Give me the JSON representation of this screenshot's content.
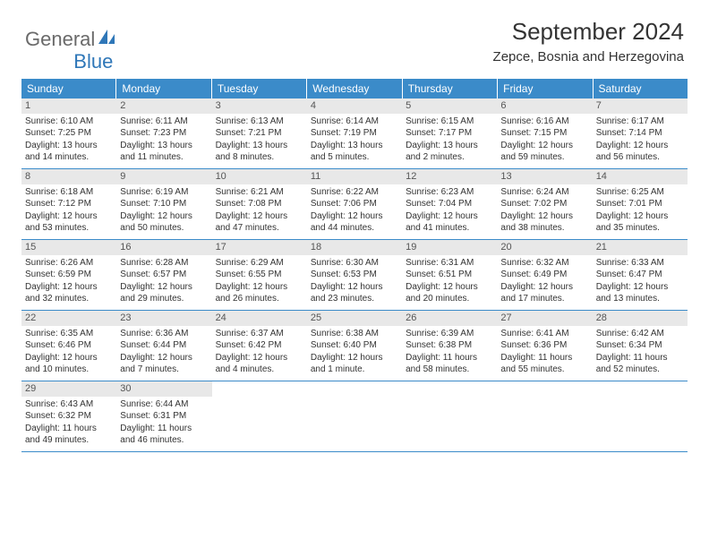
{
  "brand": {
    "part1": "General",
    "part2": "Blue",
    "part1_color": "#6a6a6a",
    "part2_color": "#2f77b8"
  },
  "title": "September 2024",
  "location": "Zepce, Bosnia and Herzegovina",
  "styling": {
    "header_bg": "#3b8bc9",
    "header_text": "#ffffff",
    "daynum_band_bg": "#e8e8e8",
    "daynum_text": "#555555",
    "body_text": "#333333",
    "row_border": "#3b8bc9",
    "weekday_fontsize": 12,
    "daynum_fontsize": 11,
    "info_fontsize": 10,
    "title_fontsize": 26,
    "location_fontsize": 15
  },
  "weekdays": [
    "Sunday",
    "Monday",
    "Tuesday",
    "Wednesday",
    "Thursday",
    "Friday",
    "Saturday"
  ],
  "weeks": [
    [
      {
        "n": "1",
        "sr": "Sunrise: 6:10 AM",
        "ss": "Sunset: 7:25 PM",
        "dl": "Daylight: 13 hours and 14 minutes."
      },
      {
        "n": "2",
        "sr": "Sunrise: 6:11 AM",
        "ss": "Sunset: 7:23 PM",
        "dl": "Daylight: 13 hours and 11 minutes."
      },
      {
        "n": "3",
        "sr": "Sunrise: 6:13 AM",
        "ss": "Sunset: 7:21 PM",
        "dl": "Daylight: 13 hours and 8 minutes."
      },
      {
        "n": "4",
        "sr": "Sunrise: 6:14 AM",
        "ss": "Sunset: 7:19 PM",
        "dl": "Daylight: 13 hours and 5 minutes."
      },
      {
        "n": "5",
        "sr": "Sunrise: 6:15 AM",
        "ss": "Sunset: 7:17 PM",
        "dl": "Daylight: 13 hours and 2 minutes."
      },
      {
        "n": "6",
        "sr": "Sunrise: 6:16 AM",
        "ss": "Sunset: 7:15 PM",
        "dl": "Daylight: 12 hours and 59 minutes."
      },
      {
        "n": "7",
        "sr": "Sunrise: 6:17 AM",
        "ss": "Sunset: 7:14 PM",
        "dl": "Daylight: 12 hours and 56 minutes."
      }
    ],
    [
      {
        "n": "8",
        "sr": "Sunrise: 6:18 AM",
        "ss": "Sunset: 7:12 PM",
        "dl": "Daylight: 12 hours and 53 minutes."
      },
      {
        "n": "9",
        "sr": "Sunrise: 6:19 AM",
        "ss": "Sunset: 7:10 PM",
        "dl": "Daylight: 12 hours and 50 minutes."
      },
      {
        "n": "10",
        "sr": "Sunrise: 6:21 AM",
        "ss": "Sunset: 7:08 PM",
        "dl": "Daylight: 12 hours and 47 minutes."
      },
      {
        "n": "11",
        "sr": "Sunrise: 6:22 AM",
        "ss": "Sunset: 7:06 PM",
        "dl": "Daylight: 12 hours and 44 minutes."
      },
      {
        "n": "12",
        "sr": "Sunrise: 6:23 AM",
        "ss": "Sunset: 7:04 PM",
        "dl": "Daylight: 12 hours and 41 minutes."
      },
      {
        "n": "13",
        "sr": "Sunrise: 6:24 AM",
        "ss": "Sunset: 7:02 PM",
        "dl": "Daylight: 12 hours and 38 minutes."
      },
      {
        "n": "14",
        "sr": "Sunrise: 6:25 AM",
        "ss": "Sunset: 7:01 PM",
        "dl": "Daylight: 12 hours and 35 minutes."
      }
    ],
    [
      {
        "n": "15",
        "sr": "Sunrise: 6:26 AM",
        "ss": "Sunset: 6:59 PM",
        "dl": "Daylight: 12 hours and 32 minutes."
      },
      {
        "n": "16",
        "sr": "Sunrise: 6:28 AM",
        "ss": "Sunset: 6:57 PM",
        "dl": "Daylight: 12 hours and 29 minutes."
      },
      {
        "n": "17",
        "sr": "Sunrise: 6:29 AM",
        "ss": "Sunset: 6:55 PM",
        "dl": "Daylight: 12 hours and 26 minutes."
      },
      {
        "n": "18",
        "sr": "Sunrise: 6:30 AM",
        "ss": "Sunset: 6:53 PM",
        "dl": "Daylight: 12 hours and 23 minutes."
      },
      {
        "n": "19",
        "sr": "Sunrise: 6:31 AM",
        "ss": "Sunset: 6:51 PM",
        "dl": "Daylight: 12 hours and 20 minutes."
      },
      {
        "n": "20",
        "sr": "Sunrise: 6:32 AM",
        "ss": "Sunset: 6:49 PM",
        "dl": "Daylight: 12 hours and 17 minutes."
      },
      {
        "n": "21",
        "sr": "Sunrise: 6:33 AM",
        "ss": "Sunset: 6:47 PM",
        "dl": "Daylight: 12 hours and 13 minutes."
      }
    ],
    [
      {
        "n": "22",
        "sr": "Sunrise: 6:35 AM",
        "ss": "Sunset: 6:46 PM",
        "dl": "Daylight: 12 hours and 10 minutes."
      },
      {
        "n": "23",
        "sr": "Sunrise: 6:36 AM",
        "ss": "Sunset: 6:44 PM",
        "dl": "Daylight: 12 hours and 7 minutes."
      },
      {
        "n": "24",
        "sr": "Sunrise: 6:37 AM",
        "ss": "Sunset: 6:42 PM",
        "dl": "Daylight: 12 hours and 4 minutes."
      },
      {
        "n": "25",
        "sr": "Sunrise: 6:38 AM",
        "ss": "Sunset: 6:40 PM",
        "dl": "Daylight: 12 hours and 1 minute."
      },
      {
        "n": "26",
        "sr": "Sunrise: 6:39 AM",
        "ss": "Sunset: 6:38 PM",
        "dl": "Daylight: 11 hours and 58 minutes."
      },
      {
        "n": "27",
        "sr": "Sunrise: 6:41 AM",
        "ss": "Sunset: 6:36 PM",
        "dl": "Daylight: 11 hours and 55 minutes."
      },
      {
        "n": "28",
        "sr": "Sunrise: 6:42 AM",
        "ss": "Sunset: 6:34 PM",
        "dl": "Daylight: 11 hours and 52 minutes."
      }
    ],
    [
      {
        "n": "29",
        "sr": "Sunrise: 6:43 AM",
        "ss": "Sunset: 6:32 PM",
        "dl": "Daylight: 11 hours and 49 minutes."
      },
      {
        "n": "30",
        "sr": "Sunrise: 6:44 AM",
        "ss": "Sunset: 6:31 PM",
        "dl": "Daylight: 11 hours and 46 minutes."
      },
      null,
      null,
      null,
      null,
      null
    ]
  ]
}
